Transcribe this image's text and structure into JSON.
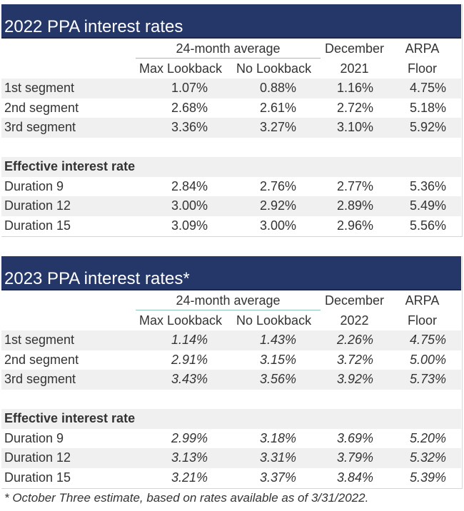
{
  "tables": [
    {
      "title": "2022 PPA interest rates",
      "header": {
        "group_label": "24-month average",
        "col_max": "Max Lookback",
        "col_no": "No Lookback",
        "col_dec_line1": "December",
        "col_dec_line2": "2021",
        "col_arpa_line1": "ARPA",
        "col_arpa_line2": "Floor"
      },
      "segments": [
        {
          "label": "1st segment",
          "max": "1.07%",
          "no": "0.88%",
          "dec": "1.16%",
          "arpa": "4.75%"
        },
        {
          "label": "2nd segment",
          "max": "2.68%",
          "no": "2.61%",
          "dec": "2.72%",
          "arpa": "5.18%"
        },
        {
          "label": "3rd segment",
          "max": "3.36%",
          "no": "3.27%",
          "dec": "3.10%",
          "arpa": "5.92%"
        }
      ],
      "effective_heading": "Effective interest rate",
      "durations": [
        {
          "label": "Duration 9",
          "max": "2.84%",
          "no": "2.76%",
          "dec": "2.77%",
          "arpa": "5.36%"
        },
        {
          "label": "Duration 12",
          "max": "3.00%",
          "no": "2.92%",
          "dec": "2.89%",
          "arpa": "5.49%"
        },
        {
          "label": "Duration 15",
          "max": "3.09%",
          "no": "3.00%",
          "dec": "2.96%",
          "arpa": "5.56%"
        }
      ]
    },
    {
      "title": "2023 PPA interest rates*",
      "header": {
        "group_label": "24-month average",
        "col_max": "Max Lookback",
        "col_no": "No Lookback",
        "col_dec_line1": "December",
        "col_dec_line2": "2022",
        "col_arpa_line1": "ARPA",
        "col_arpa_line2": "Floor"
      },
      "segments": [
        {
          "label": "1st segment",
          "max": "1.14%",
          "no": "1.43%",
          "dec": "2.26%",
          "arpa": "4.75%"
        },
        {
          "label": "2nd segment",
          "max": "2.91%",
          "no": "3.15%",
          "dec": "3.72%",
          "arpa": "5.00%"
        },
        {
          "label": "3rd segment",
          "max": "3.43%",
          "no": "3.56%",
          "dec": "3.92%",
          "arpa": "5.73%"
        }
      ],
      "effective_heading": "Effective interest rate",
      "durations": [
        {
          "label": "Duration 9",
          "max": "2.99%",
          "no": "3.18%",
          "dec": "3.69%",
          "arpa": "5.20%"
        },
        {
          "label": "Duration 12",
          "max": "3.13%",
          "no": "3.31%",
          "dec": "3.79%",
          "arpa": "5.32%"
        },
        {
          "label": "Duration 15",
          "max": "3.21%",
          "no": "3.37%",
          "dec": "3.84%",
          "arpa": "5.39%"
        }
      ]
    }
  ],
  "footnote": "* October Three estimate, based on rates available as of 3/31/2022.",
  "colors": {
    "title_bar": "#253769",
    "row_shade": "#f0f0f0",
    "group_rule": "#8fc3bd"
  }
}
